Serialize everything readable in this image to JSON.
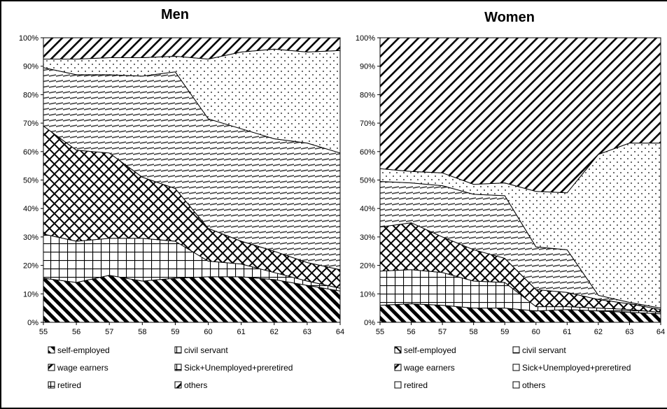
{
  "chart_data": [
    {
      "type": "area",
      "stacked": true,
      "title": "Men",
      "x": [
        55,
        56,
        57,
        58,
        59,
        60,
        61,
        62,
        63,
        64
      ],
      "ylim": [
        0,
        100
      ],
      "yticks": [
        "0%",
        "10%",
        "20%",
        "30%",
        "40%",
        "50%",
        "60%",
        "70%",
        "80%",
        "90%",
        "100%"
      ],
      "grid": false,
      "legend_position": "bottom",
      "series": [
        {
          "name": "self-employed",
          "values": [
            15.5,
            14.0,
            16.5,
            14.5,
            15.5,
            16.0,
            16.0,
            15.0,
            13.0,
            11.0
          ]
        },
        {
          "name": "civil servant",
          "values": [
            15.5,
            14.5,
            13.0,
            15.0,
            13.0,
            5.5,
            4.5,
            2.5,
            1.5,
            1.0
          ]
        },
        {
          "name": "wage earners",
          "values": [
            38.0,
            32.0,
            30.0,
            21.5,
            18.5,
            11.5,
            8.0,
            7.5,
            6.5,
            6.5
          ]
        },
        {
          "name": "Sick+Unemployed+preretired",
          "values": [
            20.5,
            26.5,
            27.5,
            35.5,
            41.0,
            38.5,
            39.5,
            39.5,
            42.0,
            41.0
          ]
        },
        {
          "name": "retired",
          "values": [
            3.0,
            5.5,
            6.0,
            6.5,
            5.5,
            21.0,
            27.0,
            31.5,
            32.0,
            36.0
          ]
        },
        {
          "name": "others",
          "values": [
            7.5,
            7.5,
            7.0,
            7.0,
            6.5,
            7.5,
            5.0,
            4.0,
            5.0,
            4.5
          ]
        }
      ],
      "legend": [
        {
          "label": "self-employed",
          "swatch": "self-employed"
        },
        {
          "label": "civil servant",
          "swatch": "civil servant"
        },
        {
          "label": "wage earners",
          "swatch": "others"
        },
        {
          "label": "Sick+Unemployed+preretired",
          "swatch": "civil servant"
        },
        {
          "label": "retired",
          "swatch": "civil servant"
        },
        {
          "label": "others",
          "swatch": "others"
        }
      ]
    },
    {
      "type": "area",
      "stacked": true,
      "title": "Women",
      "x": [
        55,
        56,
        57,
        58,
        59,
        60,
        61,
        62,
        63,
        64
      ],
      "ylim": [
        0,
        100
      ],
      "yticks": [
        "0%",
        "10%",
        "20%",
        "30%",
        "40%",
        "50%",
        "60%",
        "70%",
        "80%",
        "90%",
        "100%"
      ],
      "grid": false,
      "legend_position": "bottom",
      "series": [
        {
          "name": "self-employed",
          "values": [
            6.0,
            6.5,
            6.0,
            5.0,
            5.0,
            4.0,
            4.5,
            4.0,
            3.5,
            3.0
          ]
        },
        {
          "name": "civil servant",
          "values": [
            12.0,
            12.0,
            11.5,
            9.5,
            9.0,
            1.5,
            1.0,
            1.0,
            1.0,
            0.5
          ]
        },
        {
          "name": "wage earners",
          "values": [
            15.5,
            16.5,
            12.5,
            11.0,
            8.5,
            6.0,
            5.0,
            3.0,
            2.0,
            1.0
          ]
        },
        {
          "name": "Sick+Unemployed+preretired",
          "values": [
            16.0,
            14.0,
            18.0,
            19.5,
            22.0,
            15.0,
            15.0,
            1.5,
            0.5,
            0.5
          ]
        },
        {
          "name": "retired",
          "values": [
            4.5,
            4.0,
            4.5,
            3.5,
            4.5,
            19.5,
            20.0,
            49.5,
            56.0,
            58.0
          ]
        },
        {
          "name": "others",
          "values": [
            46.0,
            47.0,
            47.5,
            51.5,
            51.0,
            54.0,
            54.5,
            41.0,
            37.0,
            37.0
          ]
        }
      ],
      "legend": [
        {
          "label": "self-employed",
          "swatch": "wage earners"
        },
        {
          "label": "civil servant",
          "swatch": "civil servant-legend"
        },
        {
          "label": "wage earners",
          "swatch": "others-legend"
        },
        {
          "label": "Sick+Unemployed+preretired",
          "swatch": "blank"
        },
        {
          "label": "retired",
          "swatch": "blank"
        },
        {
          "label": "others",
          "swatch": "blank"
        }
      ]
    }
  ]
}
